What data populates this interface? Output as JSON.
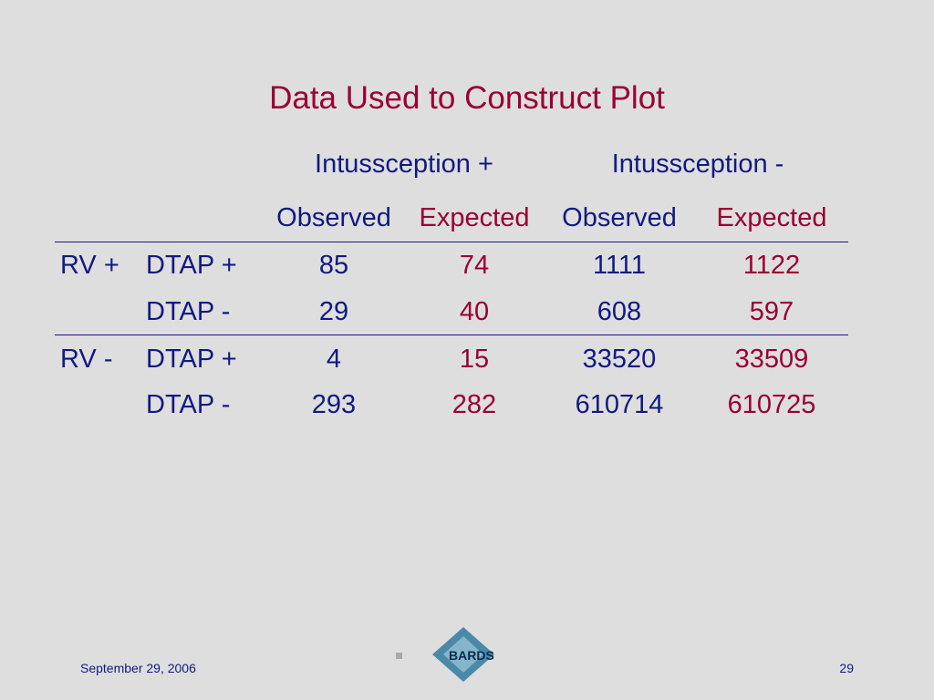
{
  "title": "Data Used to Construct Plot",
  "table": {
    "group_headers": [
      "Intussception +",
      "Intussception -"
    ],
    "column_headers": [
      "Observed",
      "Expected",
      "Observed",
      "Expected"
    ],
    "rows": [
      {
        "group": "RV +",
        "label": "DTAP +",
        "values": [
          85,
          74,
          1111,
          1122
        ]
      },
      {
        "label": "DTAP -",
        "values": [
          29,
          40,
          608,
          597
        ]
      },
      {
        "group": "RV -",
        "label": "DTAP +",
        "values": [
          4,
          15,
          33520,
          33509
        ]
      },
      {
        "label": "DTAP -",
        "values": [
          293,
          282,
          610714,
          610725
        ]
      }
    ]
  },
  "footer": {
    "date": "September 29, 2006",
    "page": 29,
    "logo": "BARDS"
  }
}
